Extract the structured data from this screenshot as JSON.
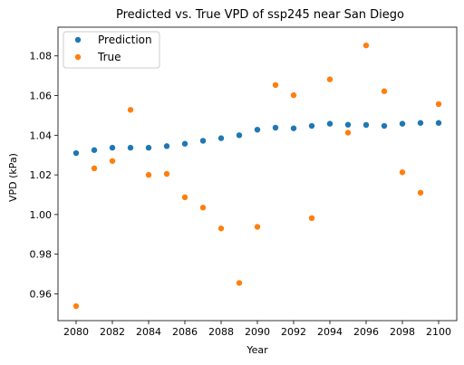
{
  "chart_data": {
    "type": "scatter",
    "title": "Predicted vs. True VPD of ssp245 near San Diego",
    "xlabel": "Year",
    "ylabel": "VPD (kPa)",
    "xlim": [
      2079.0,
      2101.0
    ],
    "ylim": [
      0.9465,
      1.0945
    ],
    "xticks": [
      2080,
      2082,
      2084,
      2086,
      2088,
      2090,
      2092,
      2094,
      2096,
      2098,
      2100
    ],
    "yticks": [
      0.96,
      0.98,
      1.0,
      1.02,
      1.04,
      1.06,
      1.08
    ],
    "grid": false,
    "legend": "top-left",
    "x": [
      2080,
      2081,
      2082,
      2083,
      2084,
      2085,
      2086,
      2087,
      2088,
      2089,
      2090,
      2091,
      2092,
      2093,
      2094,
      2095,
      2096,
      2097,
      2098,
      2099,
      2100
    ],
    "series": [
      {
        "name": "Prediction",
        "color": "#1f77b4",
        "values": [
          1.031,
          1.0325,
          1.0337,
          1.0337,
          1.0337,
          1.0345,
          1.0357,
          1.0372,
          1.0385,
          1.04,
          1.0428,
          1.0438,
          1.0435,
          1.0447,
          1.0458,
          1.0453,
          1.0452,
          1.0447,
          1.0458,
          1.0462,
          1.0462
        ]
      },
      {
        "name": "True",
        "color": "#ff7f0e",
        "values": [
          0.9538,
          1.0233,
          1.027,
          1.0528,
          1.02,
          1.0205,
          1.0087,
          1.0035,
          0.993,
          0.9655,
          0.9938,
          1.0653,
          1.0602,
          0.9982,
          1.0682,
          1.0413,
          1.0853,
          1.0622,
          1.0213,
          1.011,
          1.0557
        ]
      }
    ]
  }
}
